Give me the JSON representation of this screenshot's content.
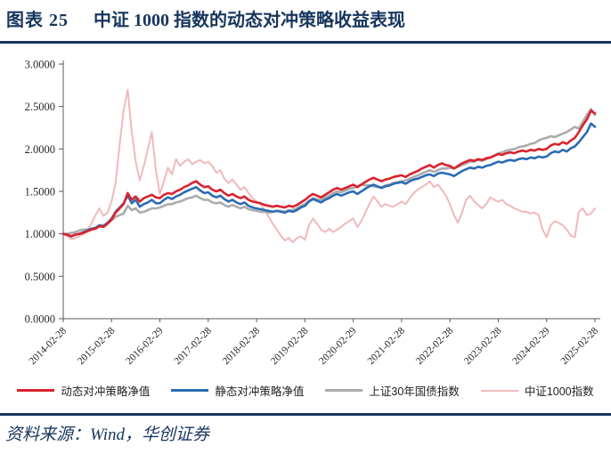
{
  "header": {
    "figure_label": "图表 25",
    "figure_title": "中证 1000 指数的动态对冲策略收益表现"
  },
  "footer": {
    "source_note": "资料来源：Wind，华创证券"
  },
  "colors": {
    "accent_navy": "#17365d",
    "series_red": "#d9232e",
    "series_blue": "#2b6cb3",
    "series_gray": "#ababab",
    "series_pink": "#f0b9bb",
    "axis_line": "#595959",
    "tick_text": "#262626"
  },
  "chart_data": {
    "type": "line",
    "title": "",
    "xlabel": "",
    "ylabel": "",
    "ylim": [
      0,
      3
    ],
    "y_tick_step": 0.5,
    "grid": false,
    "legend_position": "bottom",
    "y_tick_labels": [
      "0.0000",
      "0.5000",
      "1.0000",
      "1.5000",
      "2.0000",
      "2.5000",
      "3.0000"
    ],
    "x_tick_labels": [
      "2014-02-28",
      "2015-02-28",
      "2016-02-29",
      "2017-02-28",
      "2018-02-28",
      "2019-02-28",
      "2020-02-29",
      "2021-02-28",
      "2022-02-28",
      "2023-02-28",
      "2024-02-29",
      "2025-02-28"
    ],
    "x_points_per_tick": 12,
    "series": [
      {
        "name": "动态对冲策略净值",
        "color": "#d9232e",
        "width": 2.6,
        "values": [
          1.0,
          0.99,
          0.97,
          0.99,
          1.0,
          1.01,
          1.03,
          1.05,
          1.06,
          1.09,
          1.08,
          1.12,
          1.17,
          1.25,
          1.3,
          1.35,
          1.48,
          1.4,
          1.44,
          1.38,
          1.42,
          1.44,
          1.46,
          1.43,
          1.42,
          1.46,
          1.48,
          1.47,
          1.5,
          1.52,
          1.55,
          1.57,
          1.6,
          1.62,
          1.58,
          1.55,
          1.56,
          1.52,
          1.5,
          1.52,
          1.48,
          1.45,
          1.47,
          1.44,
          1.42,
          1.44,
          1.4,
          1.38,
          1.37,
          1.36,
          1.34,
          1.33,
          1.32,
          1.33,
          1.32,
          1.31,
          1.33,
          1.32,
          1.34,
          1.37,
          1.4,
          1.44,
          1.47,
          1.45,
          1.43,
          1.46,
          1.49,
          1.52,
          1.54,
          1.52,
          1.54,
          1.56,
          1.58,
          1.55,
          1.58,
          1.61,
          1.64,
          1.66,
          1.64,
          1.62,
          1.64,
          1.65,
          1.67,
          1.68,
          1.69,
          1.67,
          1.7,
          1.72,
          1.74,
          1.77,
          1.79,
          1.81,
          1.78,
          1.81,
          1.83,
          1.81,
          1.8,
          1.77,
          1.8,
          1.83,
          1.85,
          1.87,
          1.86,
          1.88,
          1.87,
          1.89,
          1.9,
          1.92,
          1.94,
          1.93,
          1.95,
          1.96,
          1.95,
          1.97,
          1.98,
          1.97,
          1.99,
          1.98,
          2.0,
          1.99,
          2.0,
          2.04,
          2.06,
          2.05,
          2.08,
          2.06,
          2.1,
          2.13,
          2.2,
          2.28,
          2.35,
          2.45,
          2.42
        ]
      },
      {
        "name": "静态对冲策略净值",
        "color": "#2b6cb3",
        "width": 2.6,
        "values": [
          1.0,
          0.99,
          0.97,
          0.99,
          1.0,
          1.02,
          1.04,
          1.06,
          1.07,
          1.1,
          1.09,
          1.13,
          1.18,
          1.26,
          1.31,
          1.36,
          1.45,
          1.36,
          1.4,
          1.32,
          1.35,
          1.37,
          1.4,
          1.36,
          1.36,
          1.4,
          1.43,
          1.41,
          1.44,
          1.46,
          1.49,
          1.51,
          1.53,
          1.55,
          1.51,
          1.48,
          1.49,
          1.45,
          1.43,
          1.45,
          1.41,
          1.38,
          1.4,
          1.37,
          1.35,
          1.37,
          1.33,
          1.31,
          1.3,
          1.29,
          1.28,
          1.27,
          1.26,
          1.27,
          1.26,
          1.25,
          1.27,
          1.26,
          1.28,
          1.31,
          1.33,
          1.38,
          1.41,
          1.39,
          1.37,
          1.4,
          1.42,
          1.45,
          1.47,
          1.45,
          1.47,
          1.49,
          1.5,
          1.47,
          1.5,
          1.53,
          1.56,
          1.58,
          1.56,
          1.54,
          1.56,
          1.57,
          1.59,
          1.6,
          1.61,
          1.59,
          1.62,
          1.64,
          1.65,
          1.67,
          1.69,
          1.7,
          1.68,
          1.71,
          1.72,
          1.71,
          1.7,
          1.68,
          1.71,
          1.74,
          1.76,
          1.78,
          1.77,
          1.79,
          1.78,
          1.8,
          1.81,
          1.83,
          1.85,
          1.84,
          1.86,
          1.87,
          1.86,
          1.88,
          1.89,
          1.88,
          1.9,
          1.89,
          1.91,
          1.9,
          1.91,
          1.95,
          1.97,
          1.96,
          1.99,
          1.97,
          2.01,
          2.03,
          2.08,
          2.14,
          2.2,
          2.3,
          2.26
        ]
      },
      {
        "name": "上证30年国债指数",
        "color": "#ababab",
        "width": 2.6,
        "values": [
          1.0,
          1.0,
          1.01,
          1.02,
          1.04,
          1.05,
          1.05,
          1.06,
          1.07,
          1.1,
          1.1,
          1.13,
          1.16,
          1.2,
          1.22,
          1.24,
          1.33,
          1.28,
          1.3,
          1.25,
          1.26,
          1.28,
          1.3,
          1.3,
          1.31,
          1.33,
          1.35,
          1.35,
          1.37,
          1.38,
          1.4,
          1.42,
          1.43,
          1.45,
          1.42,
          1.4,
          1.4,
          1.37,
          1.36,
          1.37,
          1.34,
          1.32,
          1.34,
          1.32,
          1.3,
          1.32,
          1.29,
          1.28,
          1.27,
          1.26,
          1.26,
          1.25,
          1.26,
          1.27,
          1.27,
          1.26,
          1.28,
          1.28,
          1.3,
          1.33,
          1.35,
          1.39,
          1.42,
          1.41,
          1.4,
          1.43,
          1.45,
          1.48,
          1.5,
          1.49,
          1.51,
          1.53,
          1.54,
          1.56,
          1.58,
          1.57,
          1.57,
          1.56,
          1.55,
          1.55,
          1.57,
          1.58,
          1.6,
          1.61,
          1.62,
          1.63,
          1.65,
          1.67,
          1.69,
          1.71,
          1.73,
          1.75,
          1.73,
          1.75,
          1.77,
          1.77,
          1.78,
          1.77,
          1.79,
          1.81,
          1.83,
          1.85,
          1.85,
          1.87,
          1.86,
          1.88,
          1.9,
          1.92,
          1.95,
          1.96,
          1.98,
          1.99,
          2.0,
          2.02,
          2.03,
          2.04,
          2.06,
          2.07,
          2.1,
          2.12,
          2.13,
          2.15,
          2.14,
          2.16,
          2.18,
          2.2,
          2.23,
          2.26,
          2.24,
          2.32,
          2.4,
          2.47,
          2.4
        ]
      },
      {
        "name": "中证1000指数",
        "color": "#f0b9bb",
        "width": 2.0,
        "values": [
          1.0,
          0.97,
          0.94,
          0.95,
          0.97,
          1.0,
          1.05,
          1.12,
          1.22,
          1.3,
          1.21,
          1.25,
          1.38,
          1.6,
          2.05,
          2.45,
          2.7,
          2.2,
          1.85,
          1.63,
          1.8,
          2.0,
          2.2,
          1.75,
          1.47,
          1.62,
          1.78,
          1.7,
          1.88,
          1.8,
          1.85,
          1.88,
          1.82,
          1.85,
          1.87,
          1.83,
          1.85,
          1.8,
          1.72,
          1.75,
          1.65,
          1.6,
          1.64,
          1.58,
          1.52,
          1.55,
          1.48,
          1.42,
          1.38,
          1.35,
          1.28,
          1.2,
          1.12,
          1.05,
          0.98,
          0.92,
          0.95,
          0.9,
          0.95,
          0.97,
          0.93,
          1.1,
          1.18,
          1.12,
          1.05,
          1.02,
          1.06,
          1.02,
          1.05,
          1.08,
          1.12,
          1.15,
          1.18,
          1.08,
          1.15,
          1.25,
          1.35,
          1.44,
          1.38,
          1.32,
          1.35,
          1.33,
          1.32,
          1.35,
          1.38,
          1.35,
          1.42,
          1.48,
          1.52,
          1.55,
          1.58,
          1.62,
          1.55,
          1.58,
          1.52,
          1.45,
          1.35,
          1.22,
          1.13,
          1.25,
          1.4,
          1.45,
          1.38,
          1.34,
          1.3,
          1.35,
          1.43,
          1.4,
          1.38,
          1.4,
          1.35,
          1.33,
          1.3,
          1.28,
          1.26,
          1.26,
          1.24,
          1.25,
          1.22,
          1.05,
          0.96,
          1.1,
          1.15,
          1.13,
          1.1,
          1.05,
          0.98,
          0.96,
          1.26,
          1.3,
          1.22,
          1.24,
          1.3
        ]
      }
    ]
  }
}
